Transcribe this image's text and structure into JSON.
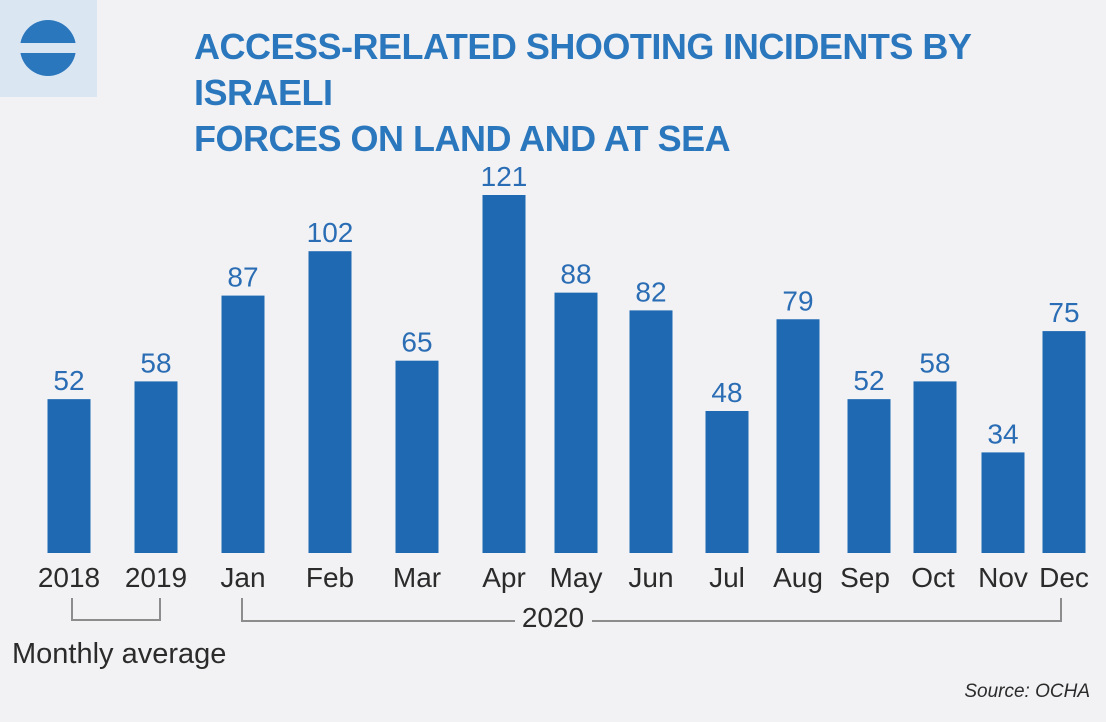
{
  "title_lines": [
    "ACCESS-RELATED SHOOTING INCIDENTS BY ISRAELI",
    "FORCES ON LAND AND AT SEA"
  ],
  "colors": {
    "bar": "#1f69b3",
    "label": "#2a6db4",
    "title": "#2a77bd",
    "background": "#f2f2f4"
  },
  "icons": {
    "logo": "ocha-circle-icon"
  },
  "chart_data": {
    "type": "bar",
    "categories": [
      "2018",
      "2019",
      "Jan",
      "Feb",
      "Mar",
      "Apr",
      "May",
      "Jun",
      "Jul",
      "Aug",
      "Sep",
      "Oct",
      "Nov",
      "Dec"
    ],
    "values": [
      52,
      58,
      87,
      102,
      65,
      121,
      88,
      82,
      48,
      79,
      52,
      58,
      34,
      75
    ],
    "group_labels": {
      "year_2020": "2020",
      "monthly_average": "Monthly average"
    },
    "ylim": [
      0,
      121
    ],
    "grid": false,
    "legend": "none",
    "data_labels": true
  },
  "source": "Source: OCHA"
}
